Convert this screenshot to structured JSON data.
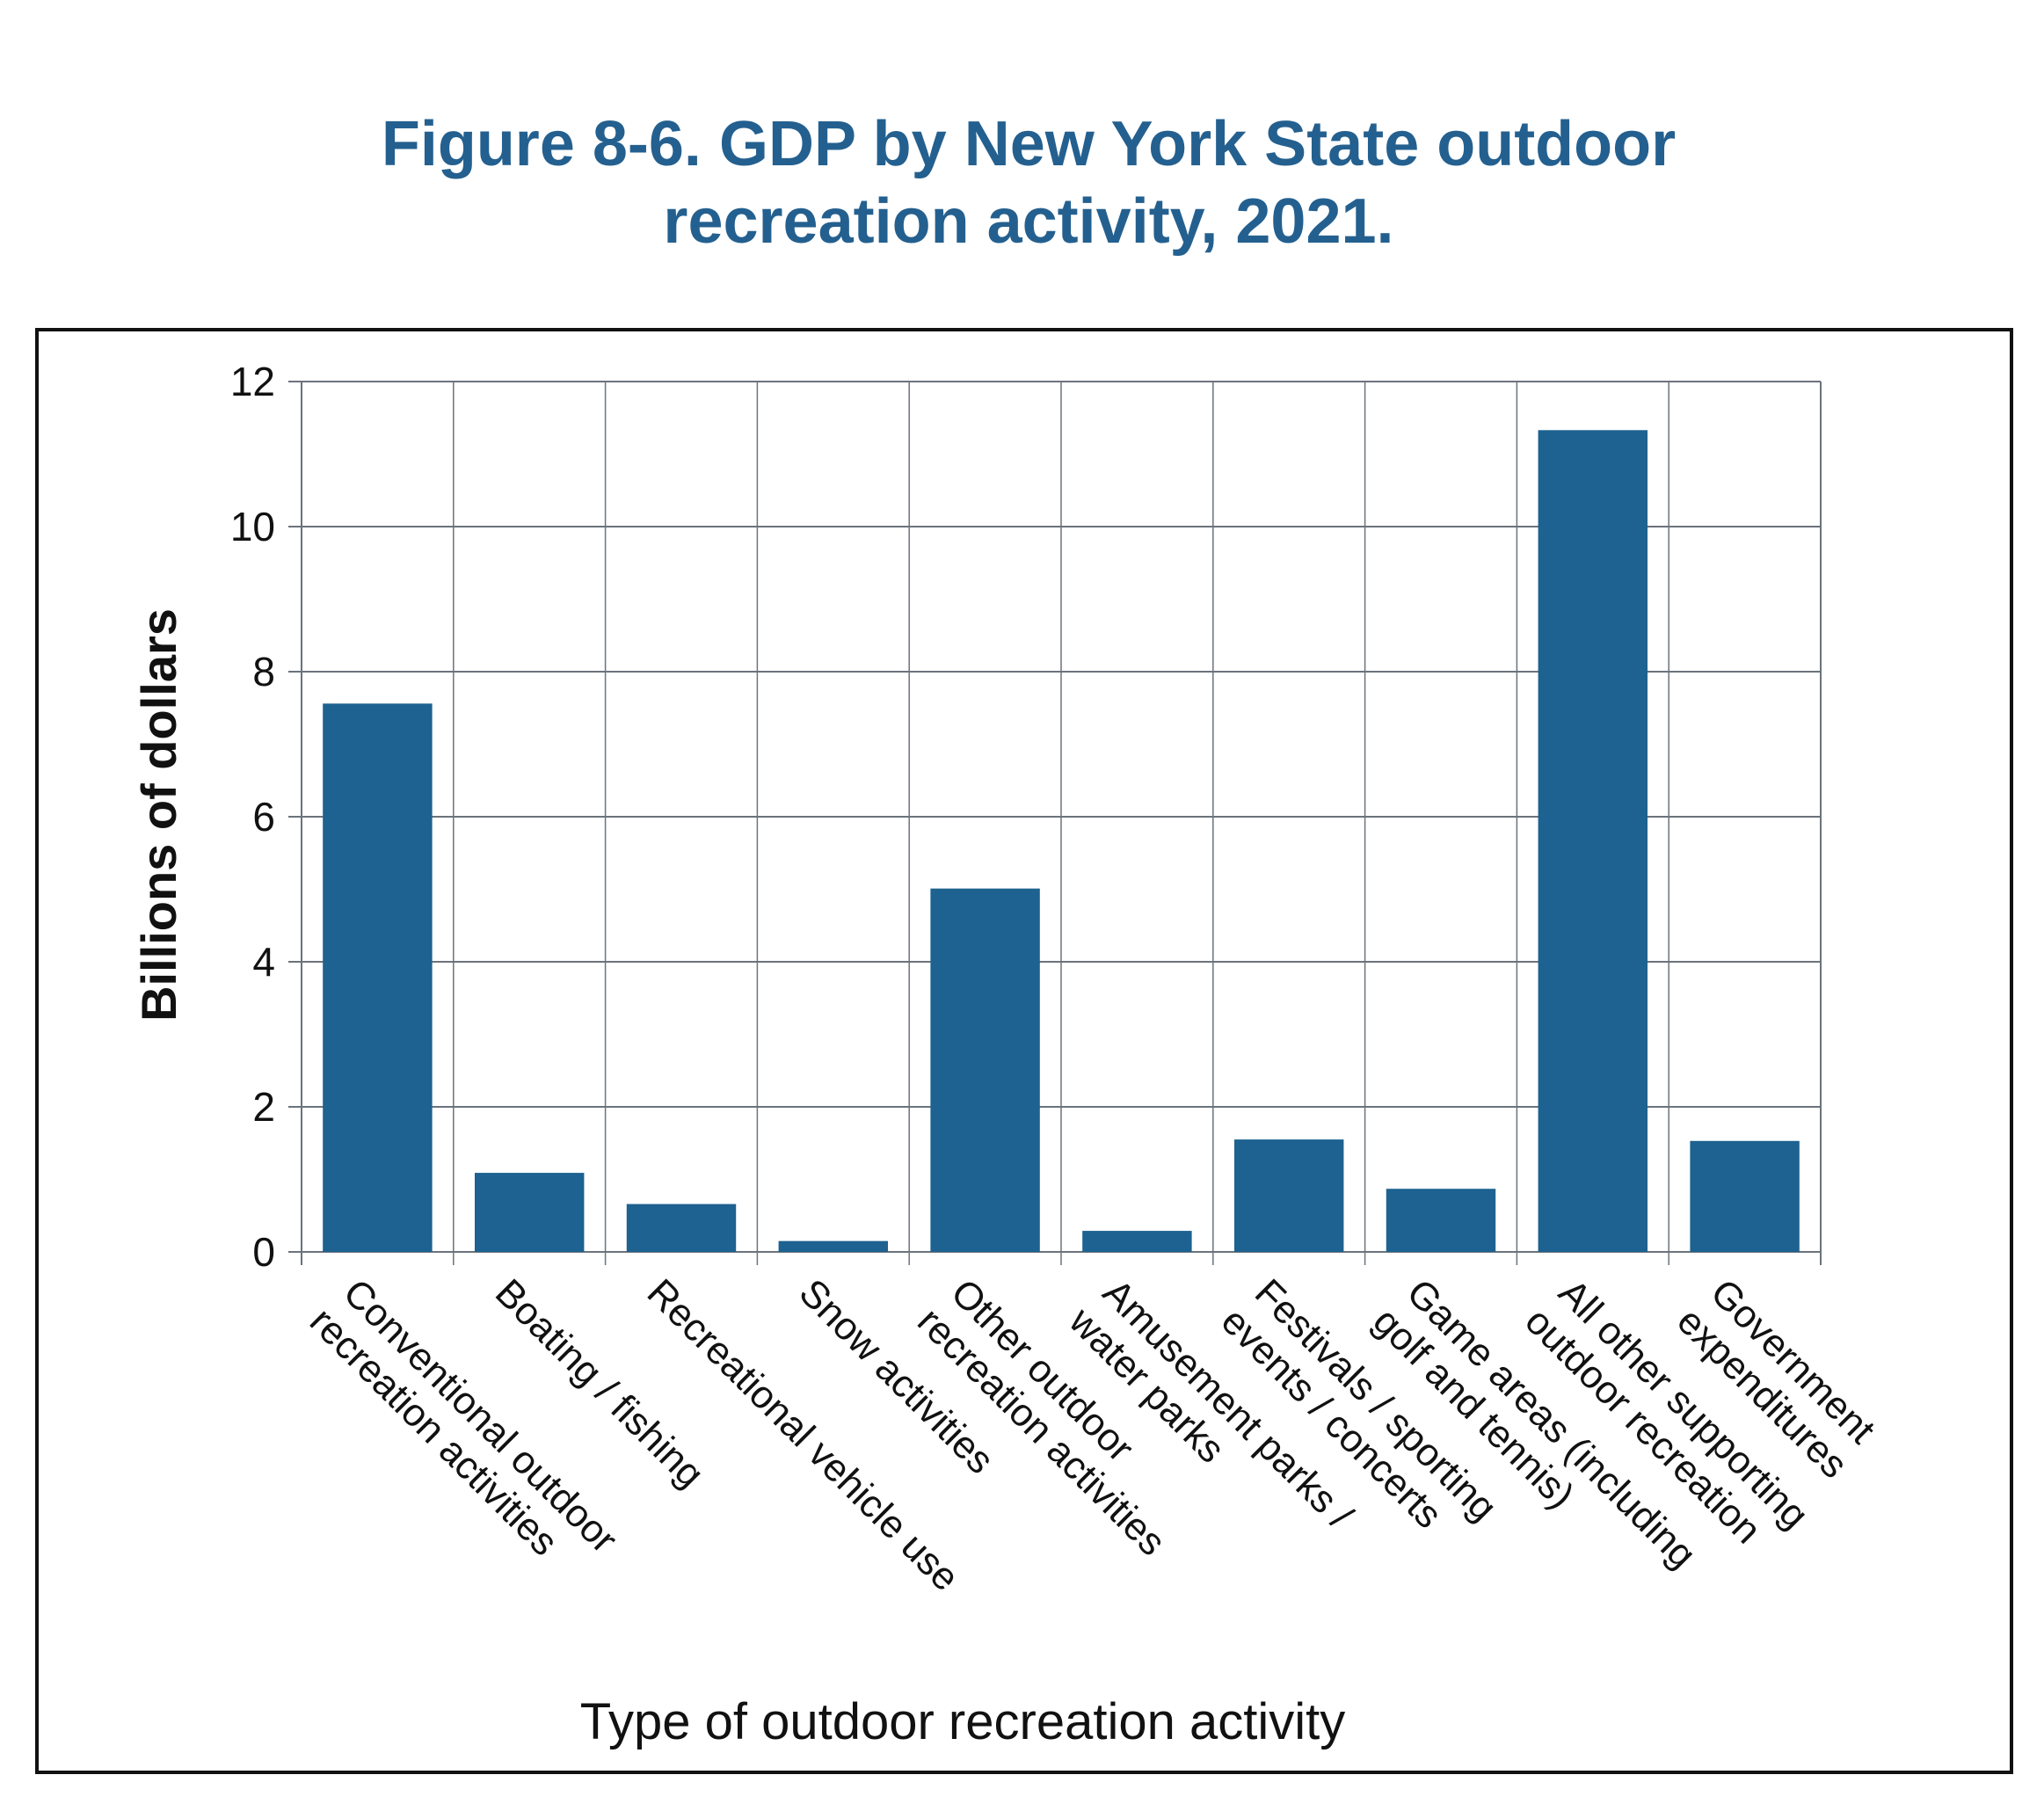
{
  "chart_data": {
    "type": "bar",
    "title": "Figure 8-6. GDP by New York State outdoor recreation activity, 2021.",
    "title_lines": [
      "Figure 8-6. GDP by New York State outdoor",
      "recreation activity, 2021."
    ],
    "xlabel": "Type of outdoor recreation activity",
    "ylabel": "Billions of dollars",
    "ylim": [
      0,
      12
    ],
    "yticks": [
      0,
      2,
      4,
      6,
      8,
      10,
      12
    ],
    "grid": true,
    "bar_color": "#1d6290",
    "categories": [
      [
        "Conventional outdoor",
        "recreation activities"
      ],
      [
        "Boating / fishing"
      ],
      [
        "Recreational vehicle use"
      ],
      [
        "Snow activities"
      ],
      [
        "Other outdoor",
        "recreation activities"
      ],
      [
        "Amusement parks /",
        "water parks"
      ],
      [
        "Festivals / sporting",
        "events / concerts"
      ],
      [
        "Game areas (including",
        "golf and tennis)"
      ],
      [
        "All other supporting",
        "outdoor recreation"
      ],
      [
        "Government",
        "expenditures"
      ]
    ],
    "values": [
      7.56,
      1.09,
      0.66,
      0.15,
      5.01,
      0.29,
      1.55,
      0.87,
      11.33,
      1.53
    ]
  }
}
